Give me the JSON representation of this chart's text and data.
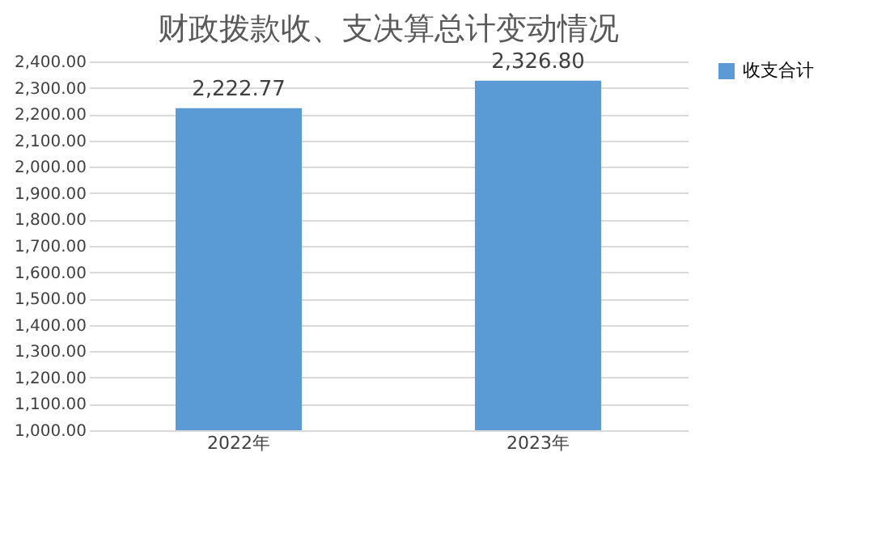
{
  "chart_data": {
    "type": "bar",
    "title": "财政拨款收、支决算总计变动情况",
    "categories": [
      "2022年",
      "2023年"
    ],
    "series": [
      {
        "name": "收支合计",
        "color": "#5b9bd5",
        "values": [
          2222.77,
          2326.8
        ]
      }
    ],
    "ylim": [
      1000,
      2400
    ],
    "yticks": [
      {
        "value": 1000,
        "label": "1,000.00"
      },
      {
        "value": 1100,
        "label": "1,100.00"
      },
      {
        "value": 1200,
        "label": "1,200.00"
      },
      {
        "value": 1300,
        "label": "1,300.00"
      },
      {
        "value": 1400,
        "label": "1,400.00"
      },
      {
        "value": 1500,
        "label": "1,500.00"
      },
      {
        "value": 1600,
        "label": "1,600.00"
      },
      {
        "value": 1700,
        "label": "1,700.00"
      },
      {
        "value": 1800,
        "label": "1,800.00"
      },
      {
        "value": 1900,
        "label": "1,900.00"
      },
      {
        "value": 2000,
        "label": "2,000.00"
      },
      {
        "value": 2100,
        "label": "2,100.00"
      },
      {
        "value": 2200,
        "label": "2,200.00"
      },
      {
        "value": 2300,
        "label": "2,300.00"
      },
      {
        "value": 2400,
        "label": "2,400.00"
      }
    ],
    "value_labels": [
      "2,222.77",
      "2,326.80"
    ],
    "grid": "y",
    "legend": "right"
  }
}
